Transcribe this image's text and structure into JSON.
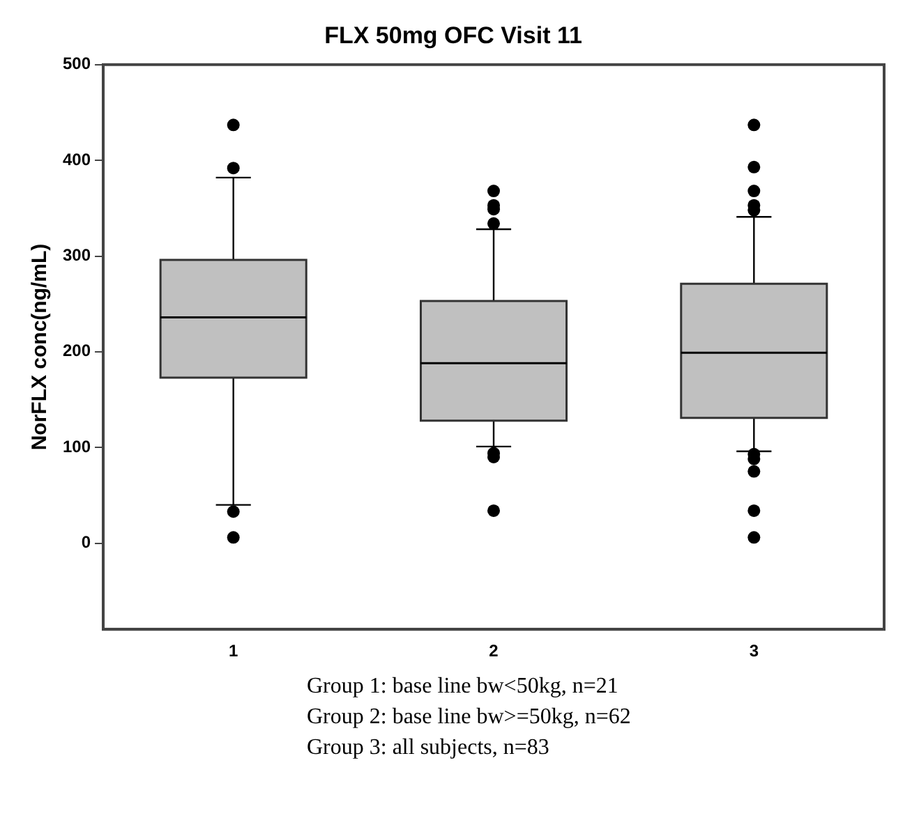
{
  "chart_data": {
    "type": "box",
    "title": "FLX 50mg OFC Visit 11",
    "ylabel": "NorFLX conc(ng/mL)",
    "categories": [
      "1",
      "2",
      "3"
    ],
    "color": "#c0c0c0",
    "boxes": [
      {
        "low": 40,
        "q1": 173,
        "median": 236,
        "q3": 296,
        "high": 382,
        "outliers": [
          437,
          392,
          33,
          6
        ]
      },
      {
        "low": 101,
        "q1": 128,
        "median": 188,
        "q3": 253,
        "high": 328,
        "outliers": [
          368,
          353,
          349,
          334,
          94,
          90,
          34
        ]
      },
      {
        "low": 96,
        "q1": 131,
        "median": 199,
        "q3": 271,
        "high": 341,
        "outliers": [
          437,
          393,
          368,
          353,
          348,
          93,
          88,
          75,
          34,
          6
        ]
      }
    ],
    "ylim": [
      -90,
      500
    ],
    "yticks": [
      0,
      100,
      200,
      300,
      400,
      500
    ],
    "grid": false,
    "legend": false,
    "marker": "circle",
    "annotations": [
      "Group 1: base line bw<50kg, n=21",
      "Group 2: base line bw>=50kg, n=62",
      "Group 3: all subjects, n=83"
    ]
  }
}
